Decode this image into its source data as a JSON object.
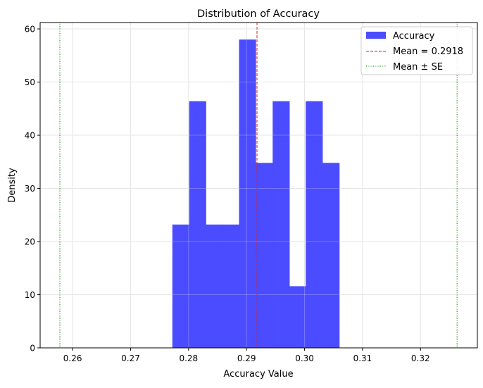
{
  "chart_data": {
    "type": "bar",
    "subtype": "histogram",
    "title": "Distribution of Accuracy",
    "xlabel": "Accuracy Value",
    "ylabel": "Density",
    "xlim": [
      0.2544,
      0.3298
    ],
    "ylim": [
      0,
      61.2
    ],
    "grid": true,
    "legend_position": "top-right",
    "xticks": [
      "0.26",
      "0.27",
      "0.28",
      "0.29",
      "0.30",
      "0.31",
      "0.32"
    ],
    "xtick_values": [
      0.26,
      0.27,
      0.28,
      0.29,
      0.3,
      0.31,
      0.32
    ],
    "yticks": [
      "0",
      "10",
      "20",
      "30",
      "40",
      "50",
      "60"
    ],
    "ytick_values": [
      0,
      10,
      20,
      30,
      40,
      50,
      60
    ],
    "bin_edges": [
      0.2772,
      0.2801,
      0.283,
      0.2859,
      0.2887,
      0.2916,
      0.2945,
      0.2974,
      0.3002,
      0.3031,
      0.306
    ],
    "series": [
      {
        "name": "Accuracy",
        "color": "#4b4bff",
        "values": [
          23.2,
          46.4,
          23.2,
          23.2,
          58.0,
          34.8,
          46.4,
          11.6,
          46.4,
          34.8
        ]
      }
    ],
    "lines": [
      {
        "name": "Mean = 0.2918",
        "x": 0.2918,
        "color": "#d62728",
        "style": "dashed"
      },
      {
        "name": "Mean ± SE",
        "x": 0.2578,
        "color": "#008000",
        "style": "dotted"
      },
      {
        "name": "",
        "x": 0.3263,
        "color": "#008000",
        "style": "dotted"
      }
    ]
  }
}
